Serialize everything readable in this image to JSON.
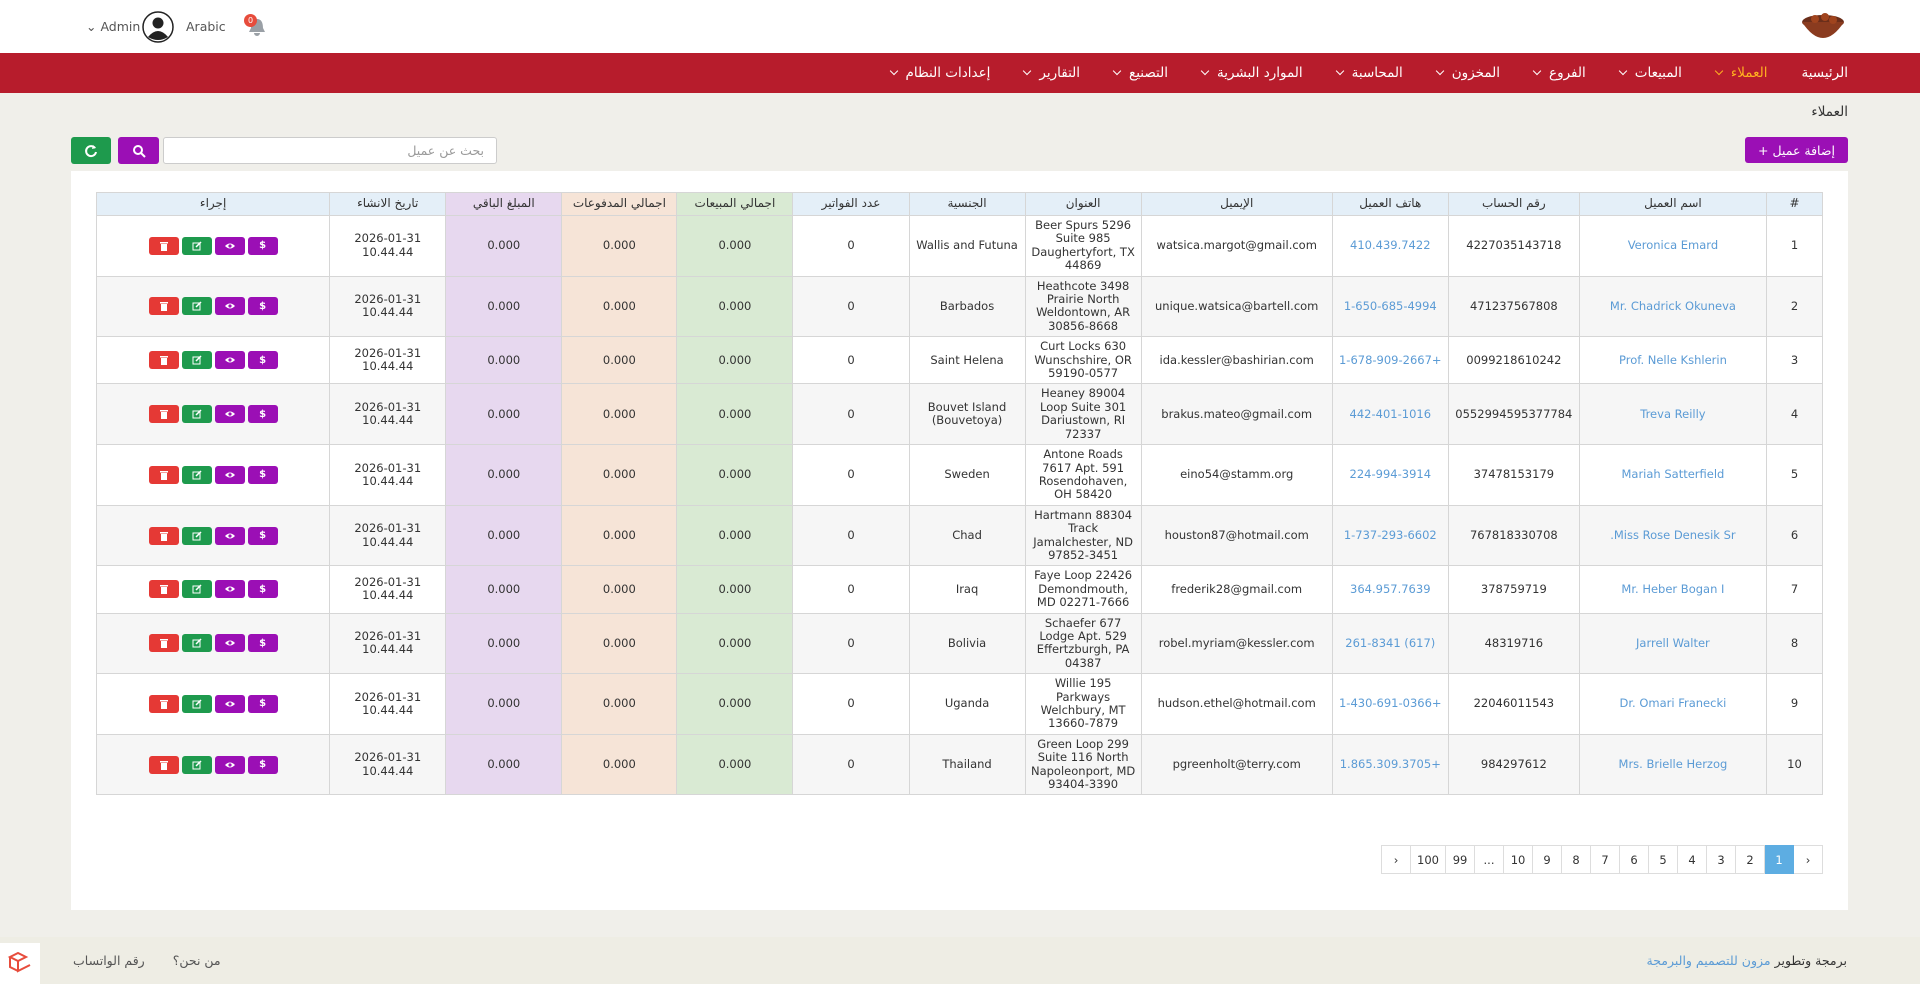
{
  "header": {
    "user": "Admin",
    "language": "Arabic",
    "notifications": "0"
  },
  "nav": {
    "items": [
      "الرئيسية",
      "العملاء",
      "المبيعات",
      "الفروع",
      "المخزون",
      "المحاسبة",
      "الموارد البشرية",
      "التصنيع",
      "التقارير",
      "إعدادات النظام"
    ],
    "active": 1
  },
  "breadcrumb": "العملاء",
  "add_button": "+ إضافة عميل",
  "search_placeholder": "بحث عن عميل",
  "pay_button": "$",
  "table": {
    "columns": [
      "#",
      "اسم العميل",
      "رقم الحساب",
      "هاتف العميل",
      "الإيميل",
      "العنوان",
      "الجنسية",
      "عدد الفواتير",
      "اجمالي المبيعات",
      "اجمالي المدفوعات",
      "المبلغ الباقي",
      "تاريخ الانشاء",
      "إجراء"
    ],
    "rows": [
      [
        "1",
        "Veronica Emard",
        "4227035143718",
        "410.439.7422",
        "watsica.margot@gmail.com",
        "Beer Spurs 5296 Suite 985 Daughertyfort, TX 44869",
        "Wallis and Futuna",
        "0",
        "0.000",
        "0.000",
        "0.000",
        "2026-01-31 10.44.44"
      ],
      [
        "2",
        "Mr. Chadrick Okuneva",
        "471237567808",
        "1-650-685-4994",
        "unique.watsica@bartell.com",
        "Heathcote 3498 Prairie North Weldontown, AR 30856-8668",
        "Barbados",
        "0",
        "0.000",
        "0.000",
        "0.000",
        "2026-01-31 10.44.44"
      ],
      [
        "3",
        "Prof. Nelle Kshlerin",
        "0099218610242",
        "+1-678-909-2667",
        "ida.kessler@bashirian.com",
        "Curt Locks 630 Wunschshire, OR 59190-0577",
        "Saint Helena",
        "0",
        "0.000",
        "0.000",
        "0.000",
        "2026-01-31 10.44.44"
      ],
      [
        "4",
        "Treva Reilly",
        "0552994595377784",
        "442-401-1016",
        "brakus.mateo@gmail.com",
        "Heaney 89004 Loop Suite 301 Dariustown, RI 72337",
        "Bouvet Island (Bouvetoya)",
        "0",
        "0.000",
        "0.000",
        "0.000",
        "2026-01-31 10.44.44"
      ],
      [
        "5",
        "Mariah Satterfield",
        "37478153179",
        "224-994-3914",
        "eino54@stamm.org",
        "Antone Roads 7617 Apt. 591 Rosendohaven, OH 58420",
        "Sweden",
        "0",
        "0.000",
        "0.000",
        "0.000",
        "2026-01-31 10.44.44"
      ],
      [
        "6",
        "Miss Rose Denesik Sr.",
        "767818330708",
        "1-737-293-6602",
        "houston87@hotmail.com",
        "Hartmann 88304 Track Jamalchester, ND 97852-3451",
        "Chad",
        "0",
        "0.000",
        "0.000",
        "0.000",
        "2026-01-31 10.44.44"
      ],
      [
        "7",
        "Mr. Heber Bogan I",
        "378759719",
        "364.957.7639",
        "frederik28@gmail.com",
        "Faye Loop 22426 Demondmouth, MD 02271-7666",
        "Iraq",
        "0",
        "0.000",
        "0.000",
        "0.000",
        "2026-01-31 10.44.44"
      ],
      [
        "8",
        "Jarrell Walter",
        "48319716",
        "(617) 261-8341",
        "robel.myriam@kessler.com",
        "Schaefer 677 Lodge Apt. 529 Effertzburgh, PA 04387",
        "Bolivia",
        "0",
        "0.000",
        "0.000",
        "0.000",
        "2026-01-31 10.44.44"
      ],
      [
        "9",
        "Dr. Omari Franecki",
        "22046011543",
        "+1-430-691-0366",
        "hudson.ethel@hotmail.com",
        "Willie 195 Parkways Welchbury, MT 13660-7879",
        "Uganda",
        "0",
        "0.000",
        "0.000",
        "0.000",
        "2026-01-31 10.44.44"
      ],
      [
        "10",
        "Mrs. Brielle Herzog",
        "984297612",
        "+1.865.309.3705",
        "pgreenholt@terry.com",
        "Green Loop 299 Suite 116 North Napoleonport, MD 93404-3390",
        "Thailand",
        "0",
        "0.000",
        "0.000",
        "0.000",
        "2026-01-31 10.44.44"
      ]
    ]
  },
  "pagination": {
    "pages": [
      "‹",
      "1",
      "2",
      "3",
      "4",
      "5",
      "6",
      "7",
      "8",
      "9",
      "10",
      "...",
      "99",
      "100",
      "‹"
    ],
    "active": 1
  },
  "footer": {
    "credit": "برمجة وتطوير",
    "credit_link": "مزون للتصميم والبرمجة",
    "links": [
      "من نحن؟",
      "رقم الواتساب"
    ]
  }
}
